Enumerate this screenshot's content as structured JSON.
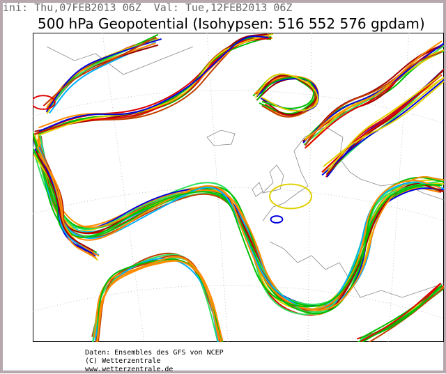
{
  "header": {
    "run_info": "ini: Thu,07FEB2013 06Z  Val: Tue,12FEB2013 06Z",
    "title": "500 hPa Geopotential (Isohypsen: 516 552 576 gpdam)"
  },
  "footer": {
    "lines": [
      "Daten: Ensembles des GFS von NCEP",
      "(C) Wetterzentrale",
      "www.wetterzentrale.de"
    ]
  }
}
